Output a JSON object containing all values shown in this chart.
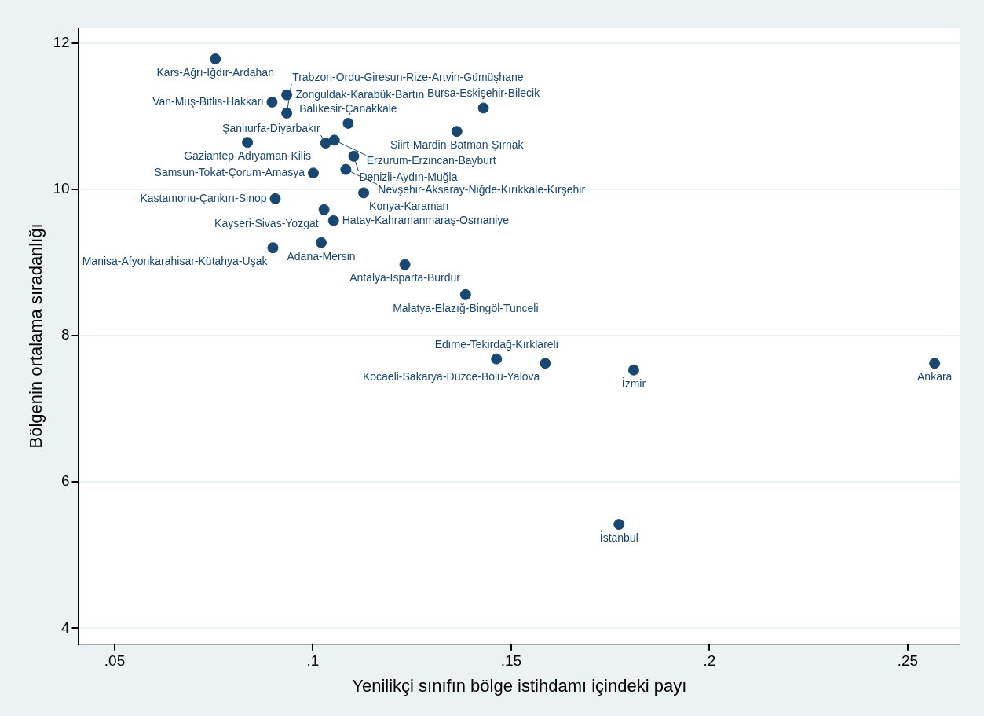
{
  "chart_data": {
    "type": "scatter",
    "xlabel": "Yenilikçi sınıfın bölge istihdamı içindeki payı",
    "ylabel": "Bölgenin ortalama sıradanlığı",
    "xlim": [
      0.0408,
      0.2633
    ],
    "xticks": [
      {
        "value": 0.05,
        "label": ".05"
      },
      {
        "value": 0.1,
        "label": ".1"
      },
      {
        "value": 0.15,
        "label": ".15"
      },
      {
        "value": 0.2,
        "label": ".2"
      },
      {
        "value": 0.25,
        "label": ".25"
      }
    ],
    "ylim": [
      3.78,
      12.21
    ],
    "yticks": [
      4,
      6,
      8,
      10,
      12
    ],
    "grid": "y",
    "marker": "circle",
    "legend": false,
    "series": [
      {
        "color": "#1a476f",
        "x": [
          0.0754,
          0.0897,
          0.0934,
          0.0934,
          0.1089,
          0.143,
          0.1363,
          0.0835,
          0.1032,
          0.1054,
          0.1103,
          0.1001,
          0.1083,
          0.0905,
          0.1128,
          0.1028,
          0.1052,
          0.1021,
          0.0899,
          0.1232,
          0.1385,
          0.1463,
          0.1586,
          0.1809,
          0.2568,
          0.1772
        ],
        "values": [
          11.78,
          11.19,
          11.29,
          11.04,
          10.9,
          11.11,
          10.79,
          10.64,
          10.63,
          10.67,
          10.45,
          10.22,
          10.27,
          9.87,
          9.95,
          9.72,
          9.57,
          9.27,
          9.2,
          8.97,
          8.56,
          7.68,
          7.62,
          7.53,
          7.62,
          5.42
        ]
      }
    ],
    "annotations": [
      {
        "text": "Kars-Ağrı-Iğdır-Ardahan",
        "x": 0.0754,
        "y": 11.78
      },
      {
        "text": "Van-Muş-Bitlis-Hakkari",
        "x": 0.0897,
        "y": 11.19
      },
      {
        "text": "Zonguldak-Karabük-Bartın",
        "x": 0.0934,
        "y": 11.29
      },
      {
        "text": "Trabzon-Ordu-Giresun-Rize-Artvin-Gümüşhane",
        "x": 0.0934,
        "y": 11.04
      },
      {
        "text": "Balıkesir-Çanakkale",
        "x": 0.1089,
        "y": 10.9
      },
      {
        "text": "Bursa-Eskişehir-Bilecik",
        "x": 0.143,
        "y": 11.11
      },
      {
        "text": "Siirt-Mardin-Batman-Şırnak",
        "x": 0.1363,
        "y": 10.79
      },
      {
        "text": "Gaziantep-Adıyaman-Kilis",
        "x": 0.0835,
        "y": 10.64
      },
      {
        "text": "Şanlıurfa-Diyarbakır",
        "x": 0.1032,
        "y": 10.63
      },
      {
        "text": "Erzurum-Erzincan-Bayburt",
        "x": 0.1054,
        "y": 10.67
      },
      {
        "text": "Denizli-Aydın-Muğla",
        "x": 0.1103,
        "y": 10.45
      },
      {
        "text": "Samsun-Tokat-Çorum-Amasya",
        "x": 0.1001,
        "y": 10.22
      },
      {
        "text": "Nevşehir-Aksaray-Niğde-Kırıkkale-Kırşehir",
        "x": 0.1083,
        "y": 10.27
      },
      {
        "text": "Kastamonu-Çankırı-Sinop",
        "x": 0.0905,
        "y": 9.87
      },
      {
        "text": "Konya-Karaman",
        "x": 0.1128,
        "y": 9.95
      },
      {
        "text": "Kayseri-Sivas-Yozgat",
        "x": 0.1028,
        "y": 9.72
      },
      {
        "text": "Hatay-Kahramanmaraş-Osmaniye",
        "x": 0.1052,
        "y": 9.57
      },
      {
        "text": "Adana-Mersin",
        "x": 0.1021,
        "y": 9.27
      },
      {
        "text": "Manisa-Afyonkarahisar-Kütahya-Uşak",
        "x": 0.0899,
        "y": 9.2
      },
      {
        "text": "Antalya-Isparta-Burdur",
        "x": 0.1232,
        "y": 8.97
      },
      {
        "text": "Malatya-Elazığ-Bingöl-Tunceli",
        "x": 0.1385,
        "y": 8.56
      },
      {
        "text": "Edirne-Tekirdağ-Kırklareli",
        "x": 0.1463,
        "y": 7.68
      },
      {
        "text": "Kocaeli-Sakarya-Düzce-Bolu-Yalova",
        "x": 0.1586,
        "y": 7.62
      },
      {
        "text": "İzmir",
        "x": 0.1809,
        "y": 7.53
      },
      {
        "text": "Ankara",
        "x": 0.2568,
        "y": 7.62
      },
      {
        "text": "İstanbul",
        "x": 0.1772,
        "y": 5.42
      }
    ]
  }
}
